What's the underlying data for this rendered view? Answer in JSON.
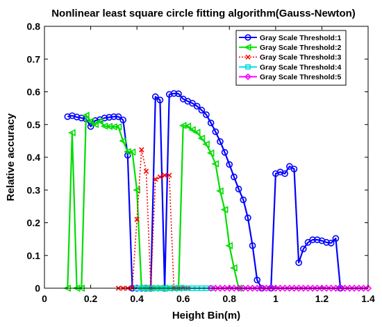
{
  "chart_data": {
    "type": "line",
    "title": "Nonlinear least square circle fitting algorithm(Gauss-Newton)",
    "xlabel": "Height Bin(m)",
    "ylabel": "Relative accuracy",
    "xlim": [
      0,
      1.4
    ],
    "ylim": [
      0,
      0.8
    ],
    "x_ticks": [
      "0",
      "0.2",
      "0.4",
      "0.6",
      "0.8",
      "1",
      "1.2",
      "1.4"
    ],
    "y_ticks": [
      "0",
      "0.1",
      "0.2",
      "0.3",
      "0.4",
      "0.5",
      "0.6",
      "0.7",
      "0.8"
    ],
    "grid": false,
    "legend_position": "top-right",
    "series": [
      {
        "name": "Gray Scale Threshold:1",
        "color": "#0000ff",
        "line": "solid",
        "marker": "circle",
        "points": [
          [
            0.1,
            0.524
          ],
          [
            0.12,
            0.527
          ],
          [
            0.14,
            0.523
          ],
          [
            0.16,
            0.52
          ],
          [
            0.18,
            0.517
          ],
          [
            0.2,
            0.494
          ],
          [
            0.22,
            0.512
          ],
          [
            0.24,
            0.515
          ],
          [
            0.26,
            0.52
          ],
          [
            0.28,
            0.522
          ],
          [
            0.3,
            0.524
          ],
          [
            0.32,
            0.524
          ],
          [
            0.34,
            0.514
          ],
          [
            0.36,
            0.406
          ],
          [
            0.38,
            0.0
          ],
          [
            0.4,
            0.0
          ],
          [
            0.42,
            0.0
          ],
          [
            0.44,
            0.0
          ],
          [
            0.46,
            0.0
          ],
          [
            0.48,
            0.585
          ],
          [
            0.5,
            0.575
          ],
          [
            0.52,
            0.0
          ],
          [
            0.54,
            0.592
          ],
          [
            0.56,
            0.595
          ],
          [
            0.58,
            0.594
          ],
          [
            0.6,
            0.578
          ],
          [
            0.62,
            0.571
          ],
          [
            0.64,
            0.565
          ],
          [
            0.66,
            0.556
          ],
          [
            0.68,
            0.544
          ],
          [
            0.7,
            0.53
          ],
          [
            0.72,
            0.505
          ],
          [
            0.74,
            0.478
          ],
          [
            0.76,
            0.448
          ],
          [
            0.78,
            0.415
          ],
          [
            0.8,
            0.378
          ],
          [
            0.82,
            0.34
          ],
          [
            0.84,
            0.303
          ],
          [
            0.86,
            0.27
          ],
          [
            0.88,
            0.215
          ],
          [
            0.9,
            0.13
          ],
          [
            0.92,
            0.025
          ],
          [
            0.94,
            0.0
          ],
          [
            0.98,
            0.0
          ],
          [
            1.0,
            0.35
          ],
          [
            1.02,
            0.355
          ],
          [
            1.04,
            0.35
          ],
          [
            1.06,
            0.372
          ],
          [
            1.08,
            0.364
          ],
          [
            1.1,
            0.078
          ],
          [
            1.12,
            0.12
          ],
          [
            1.14,
            0.14
          ],
          [
            1.16,
            0.148
          ],
          [
            1.18,
            0.148
          ],
          [
            1.2,
            0.145
          ],
          [
            1.22,
            0.14
          ],
          [
            1.24,
            0.138
          ],
          [
            1.26,
            0.152
          ],
          [
            1.28,
            0.0
          ]
        ]
      },
      {
        "name": "Gray Scale Threshold:2",
        "color": "#00dd00",
        "line": "solid",
        "marker": "triangle-left",
        "points": [
          [
            0.1,
            0.0
          ],
          [
            0.12,
            0.475
          ],
          [
            0.14,
            0.0
          ],
          [
            0.16,
            0.0
          ],
          [
            0.18,
            0.528
          ],
          [
            0.2,
            0.51
          ],
          [
            0.22,
            0.5
          ],
          [
            0.24,
            0.51
          ],
          [
            0.26,
            0.495
          ],
          [
            0.28,
            0.494
          ],
          [
            0.3,
            0.493
          ],
          [
            0.32,
            0.493
          ],
          [
            0.34,
            0.45
          ],
          [
            0.36,
            0.417
          ],
          [
            0.38,
            0.416
          ],
          [
            0.4,
            0.3
          ],
          [
            0.42,
            0.0
          ],
          [
            0.44,
            0.0
          ],
          [
            0.46,
            0.0
          ],
          [
            0.48,
            0.0
          ],
          [
            0.5,
            0.0
          ],
          [
            0.52,
            0.0
          ],
          [
            0.54,
            0.0
          ],
          [
            0.56,
            0.0
          ],
          [
            0.58,
            0.0
          ],
          [
            0.6,
            0.497
          ],
          [
            0.62,
            0.495
          ],
          [
            0.64,
            0.484
          ],
          [
            0.66,
            0.476
          ],
          [
            0.68,
            0.458
          ],
          [
            0.7,
            0.44
          ],
          [
            0.72,
            0.413
          ],
          [
            0.74,
            0.38
          ],
          [
            0.76,
            0.297
          ],
          [
            0.78,
            0.24
          ],
          [
            0.8,
            0.13
          ],
          [
            0.82,
            0.062
          ],
          [
            0.84,
            0.0
          ]
        ]
      },
      {
        "name": "Gray Scale Threshold:3",
        "color": "#ff0000",
        "line": "dotted",
        "marker": "x",
        "points": [
          [
            0.32,
            0.0
          ],
          [
            0.34,
            0.0
          ],
          [
            0.36,
            0.0
          ],
          [
            0.38,
            0.0
          ],
          [
            0.4,
            0.21
          ],
          [
            0.42,
            0.423
          ],
          [
            0.44,
            0.357
          ],
          [
            0.46,
            0.0
          ],
          [
            0.48,
            0.333
          ],
          [
            0.5,
            0.34
          ],
          [
            0.52,
            0.345
          ],
          [
            0.54,
            0.345
          ],
          [
            0.56,
            0.0
          ],
          [
            0.58,
            0.0
          ],
          [
            0.6,
            0.0
          ],
          [
            0.62,
            0.0
          ]
        ]
      },
      {
        "name": "Gray Scale Threshold:4",
        "color": "#00dddd",
        "line": "solid",
        "marker": "square",
        "points": [
          [
            0.4,
            0.0
          ],
          [
            0.42,
            0.0
          ],
          [
            0.44,
            0.0
          ],
          [
            0.46,
            0.0
          ],
          [
            0.48,
            0.0
          ],
          [
            0.5,
            0.0
          ],
          [
            0.52,
            0.0
          ],
          [
            0.54,
            0.0
          ],
          [
            0.56,
            0.0
          ],
          [
            0.58,
            0.0
          ],
          [
            0.6,
            0.0
          ],
          [
            0.62,
            0.0
          ],
          [
            0.64,
            0.0
          ],
          [
            0.66,
            0.0
          ],
          [
            0.68,
            0.0
          ],
          [
            0.7,
            0.0
          ],
          [
            0.72,
            0.0
          ]
        ]
      },
      {
        "name": "Gray Scale Threshold:5",
        "color": "#ff00ff",
        "line": "solid",
        "marker": "diamond",
        "points": [
          [
            0.72,
            0.0
          ],
          [
            0.74,
            0.0
          ],
          [
            0.76,
            0.0
          ],
          [
            0.78,
            0.0
          ],
          [
            0.8,
            0.0
          ],
          [
            0.82,
            0.0
          ],
          [
            0.84,
            0.0
          ],
          [
            0.86,
            0.0
          ],
          [
            0.88,
            0.0
          ],
          [
            0.9,
            0.0
          ],
          [
            0.92,
            0.0
          ],
          [
            0.94,
            0.0
          ],
          [
            0.96,
            0.0
          ],
          [
            0.98,
            0.0
          ],
          [
            1.0,
            0.0
          ],
          [
            1.02,
            0.0
          ],
          [
            1.04,
            0.0
          ],
          [
            1.06,
            0.0
          ],
          [
            1.08,
            0.0
          ],
          [
            1.1,
            0.0
          ],
          [
            1.12,
            0.0
          ],
          [
            1.14,
            0.0
          ],
          [
            1.16,
            0.0
          ],
          [
            1.18,
            0.0
          ],
          [
            1.2,
            0.0
          ],
          [
            1.22,
            0.0
          ],
          [
            1.24,
            0.0
          ],
          [
            1.26,
            0.0
          ],
          [
            1.28,
            0.0
          ],
          [
            1.3,
            0.0
          ],
          [
            1.32,
            0.0
          ],
          [
            1.34,
            0.0
          ],
          [
            1.36,
            0.0
          ],
          [
            1.38,
            0.0
          ],
          [
            1.4,
            0.0
          ]
        ]
      }
    ]
  }
}
